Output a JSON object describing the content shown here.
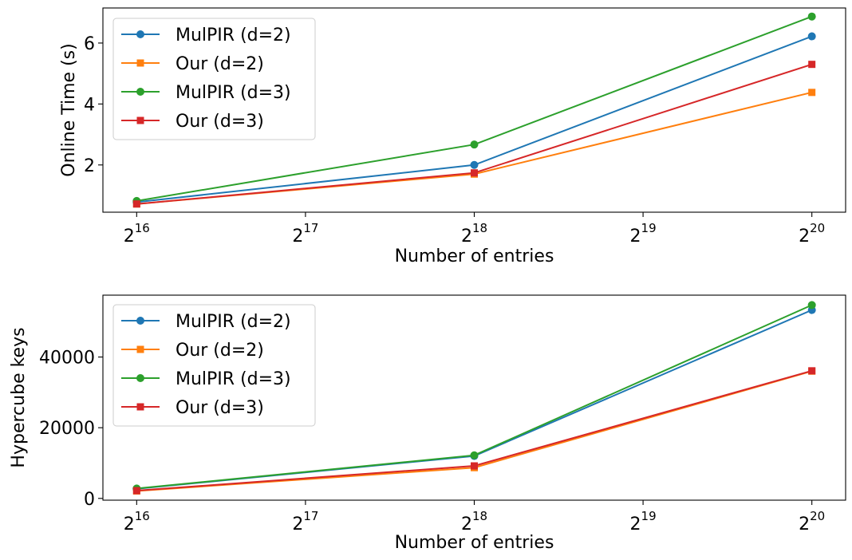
{
  "chart_data": [
    {
      "type": "line",
      "title": "",
      "xlabel": "Number of entries",
      "ylabel": "Online Time (s)",
      "x": [
        16,
        18,
        20
      ],
      "x_ticks": [
        16,
        17,
        18,
        19,
        20
      ],
      "x_tick_base": "2",
      "x_scale": "log2",
      "xlim": [
        15.8,
        20.2
      ],
      "ylim": [
        0.45,
        7.15
      ],
      "y_ticks": [
        2,
        4,
        6
      ],
      "legend_position": "upper-left",
      "grid": false,
      "series": [
        {
          "name": "MulPIR (d=2)",
          "values": [
            0.78,
            2.0,
            6.22
          ],
          "color": "#1f77b4",
          "marker": "circle"
        },
        {
          "name": "Our (d=2)",
          "values": [
            0.72,
            1.7,
            4.38
          ],
          "color": "#ff7f0e",
          "marker": "square"
        },
        {
          "name": "MulPIR (d=3)",
          "values": [
            0.82,
            2.67,
            6.87
          ],
          "color": "#2ca02c",
          "marker": "circle"
        },
        {
          "name": "Our (d=3)",
          "values": [
            0.72,
            1.74,
            5.3
          ],
          "color": "#d62728",
          "marker": "square"
        }
      ]
    },
    {
      "type": "line",
      "title": "",
      "xlabel": "Number of entries",
      "ylabel": "Hypercube keys",
      "x": [
        16,
        18,
        20
      ],
      "x_ticks": [
        16,
        17,
        18,
        19,
        20
      ],
      "x_tick_base": "2",
      "x_scale": "log2",
      "xlim": [
        15.8,
        20.2
      ],
      "ylim": [
        -500,
        57500
      ],
      "y_ticks": [
        0,
        20000,
        40000
      ],
      "legend_position": "upper-left",
      "grid": false,
      "series": [
        {
          "name": "MulPIR (d=2)",
          "values": [
            2700,
            12000,
            53300
          ],
          "color": "#1f77b4",
          "marker": "circle"
        },
        {
          "name": "Our (d=2)",
          "values": [
            2100,
            8700,
            36000
          ],
          "color": "#ff7f0e",
          "marker": "square"
        },
        {
          "name": "MulPIR (d=3)",
          "values": [
            2800,
            12200,
            54700
          ],
          "color": "#2ca02c",
          "marker": "circle"
        },
        {
          "name": "Our (d=3)",
          "values": [
            2200,
            9200,
            36100
          ],
          "color": "#d62728",
          "marker": "square"
        }
      ]
    }
  ]
}
